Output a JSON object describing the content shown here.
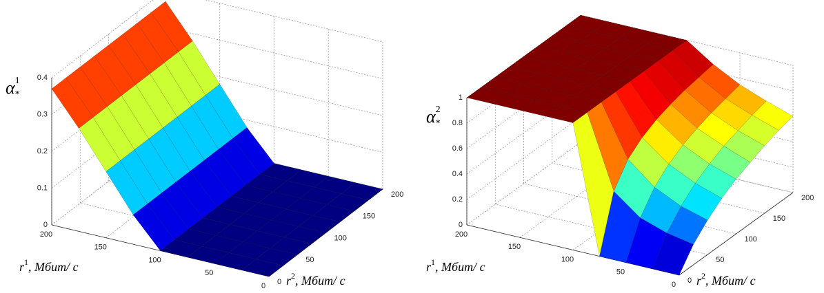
{
  "chart_data": [
    {
      "type": "surface",
      "zlabel": {
        "symbol": "α",
        "sub": "*",
        "sup": "1"
      },
      "xlabel": {
        "var": "r",
        "sup": "1",
        "unit": ", Мбит/ с"
      },
      "ylabel": {
        "var": "r",
        "sup": "2",
        "unit": ", Мбит/ с"
      },
      "x": [
        0,
        25,
        50,
        75,
        100,
        125,
        150,
        175,
        200
      ],
      "y": [
        0,
        25,
        50,
        75,
        100,
        125,
        150,
        175,
        200
      ],
      "z": [
        [
          0,
          0,
          0,
          0,
          0,
          0,
          0,
          0,
          0
        ],
        [
          0,
          0,
          0,
          0,
          0,
          0,
          0,
          0,
          0
        ],
        [
          0,
          0,
          0,
          0,
          0,
          0,
          0,
          0,
          0
        ],
        [
          0,
          0,
          0,
          0,
          0,
          0,
          0,
          0,
          0
        ],
        [
          0,
          0,
          0,
          0,
          0,
          0,
          0,
          0,
          0
        ],
        [
          0.08,
          0.08,
          0.08,
          0.08,
          0.08,
          0.08,
          0.08,
          0.08,
          0.08
        ],
        [
          0.18,
          0.18,
          0.18,
          0.18,
          0.18,
          0.18,
          0.18,
          0.18,
          0.18
        ],
        [
          0.28,
          0.28,
          0.28,
          0.28,
          0.28,
          0.28,
          0.28,
          0.28,
          0.28
        ],
        [
          0.37,
          0.37,
          0.37,
          0.37,
          0.37,
          0.37,
          0.37,
          0.37,
          0.37
        ]
      ],
      "xlim": [
        0,
        200
      ],
      "xticks": [
        0,
        50,
        100,
        150,
        200
      ],
      "ylim": [
        0,
        200
      ],
      "yticks": [
        0,
        50,
        100,
        150,
        200
      ],
      "zlim": [
        0,
        0.4
      ],
      "zticks": [
        0,
        0.1,
        0.2,
        0.3,
        0.4
      ],
      "colormap": "jet",
      "grid": true
    },
    {
      "type": "surface",
      "zlabel": {
        "symbol": "α",
        "sub": "*",
        "sup": "2"
      },
      "xlabel": {
        "var": "r",
        "sup": "1",
        "unit": ", Мбит/ с"
      },
      "ylabel": {
        "var": "r",
        "sup": "2",
        "unit": ", Мбит/ с"
      },
      "x": [
        0,
        25,
        50,
        75,
        100,
        125,
        150,
        175,
        200
      ],
      "y": [
        0,
        25,
        50,
        75,
        100,
        125,
        150,
        175,
        200
      ],
      "z": [
        [
          0,
          0.16,
          0.27,
          0.36,
          0.43,
          0.48,
          0.53,
          0.57,
          0.6
        ],
        [
          0,
          0.2,
          0.33,
          0.43,
          0.5,
          0.56,
          0.6,
          0.64,
          0.67
        ],
        [
          0,
          0.27,
          0.43,
          0.53,
          0.6,
          0.65,
          0.69,
          0.72,
          0.75
        ],
        [
          0,
          0.43,
          0.6,
          0.69,
          0.75,
          0.79,
          0.82,
          0.84,
          0.86
        ],
        [
          1,
          1,
          1,
          1,
          1,
          1,
          1,
          1,
          1
        ],
        [
          1,
          1,
          1,
          1,
          1,
          1,
          1,
          1,
          1
        ],
        [
          1,
          1,
          1,
          1,
          1,
          1,
          1,
          1,
          1
        ],
        [
          1,
          1,
          1,
          1,
          1,
          1,
          1,
          1,
          1
        ],
        [
          1,
          1,
          1,
          1,
          1,
          1,
          1,
          1,
          1
        ]
      ],
      "xlim": [
        0,
        200
      ],
      "xticks": [
        0,
        50,
        100,
        150,
        200
      ],
      "ylim": [
        0,
        200
      ],
      "yticks": [
        0,
        50,
        100,
        150,
        200
      ],
      "zlim": [
        0,
        1
      ],
      "zticks": [
        0,
        0.2,
        0.4,
        0.6,
        0.8,
        1
      ],
      "colormap": "jet",
      "grid": true
    }
  ]
}
